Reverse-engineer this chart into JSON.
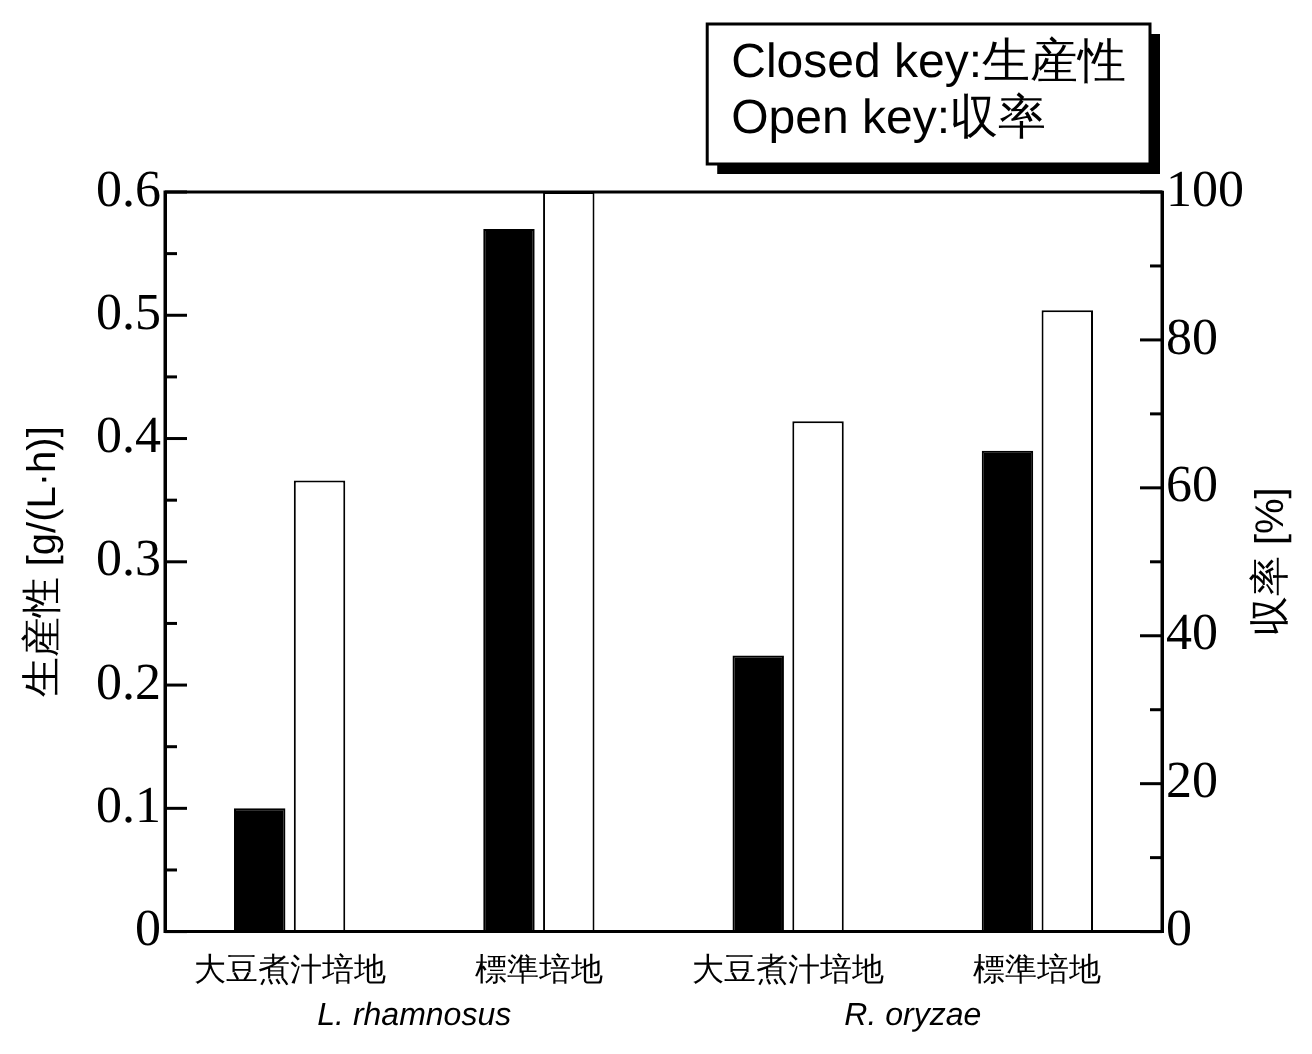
{
  "chart_data": {
    "type": "bar",
    "categories": [
      "大豆煮汁培地",
      "標準培地",
      "大豆煮汁培地",
      "標準培地"
    ],
    "series": [
      {
        "name": "Closed key:生産性",
        "color": "#000000",
        "values": [
          0.1,
          0.57,
          0.224,
          0.39
        ]
      },
      {
        "name": "Open key:収率",
        "color": "#ffffff",
        "values": [
          61,
          100,
          69,
          84
        ],
        "axis": "y2"
      }
    ],
    "ylabel": "生産性 [g/(L·h)]",
    "y2label": "収率 [%]",
    "ylim": [
      0,
      0.6
    ],
    "yticks": [
      0,
      {
        "value": 0.05,
        "label": null
      },
      0.1,
      {
        "value": 0.15,
        "label": null
      },
      0.2,
      {
        "value": 0.25,
        "label": null
      },
      0.3,
      {
        "value": 0.35,
        "label": null
      },
      0.4,
      {
        "value": 0.45,
        "label": null
      },
      0.5,
      {
        "value": 0.55,
        "label": null
      },
      0.6
    ],
    "y2lim": [
      0,
      100
    ],
    "y2ticks": [
      0,
      {
        "value": 10,
        "label": null
      },
      20,
      {
        "value": 30,
        "label": null
      },
      40,
      {
        "value": 50,
        "label": null
      },
      60,
      {
        "value": 70,
        "label": null
      },
      80,
      {
        "value": 90,
        "label": null
      },
      100
    ],
    "annotations": [
      "L. rhamnosus",
      "R. oryzae"
    ],
    "legend": "top right",
    "grid": false
  }
}
